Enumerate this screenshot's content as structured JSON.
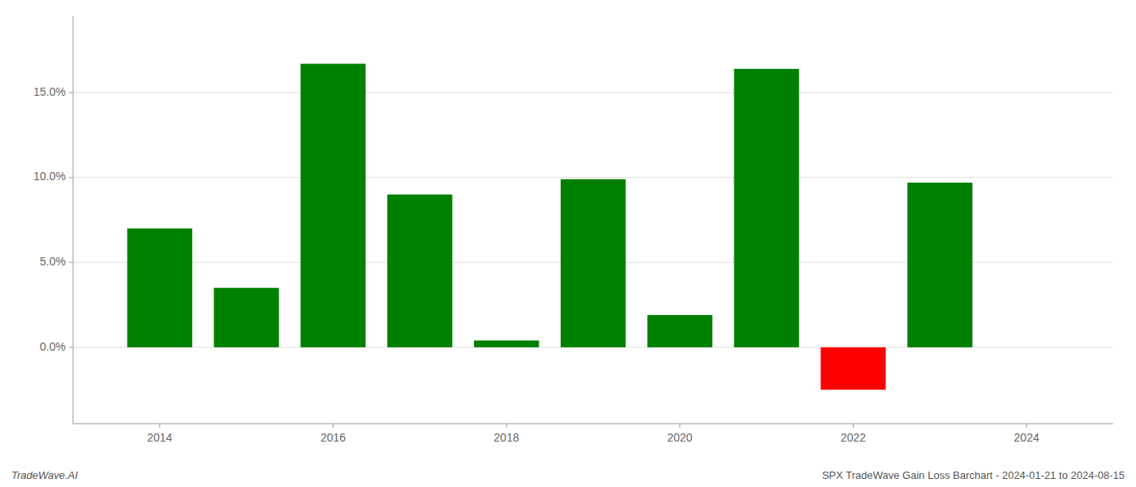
{
  "chart_data": {
    "type": "bar",
    "x": [
      2014,
      2015,
      2016,
      2017,
      2018,
      2019,
      2020,
      2021,
      2022,
      2023
    ],
    "values": [
      0.07,
      0.035,
      0.167,
      0.09,
      0.004,
      0.099,
      0.019,
      0.164,
      -0.025,
      0.097
    ],
    "colors": [
      "#008000",
      "#008000",
      "#008000",
      "#008000",
      "#008000",
      "#008000",
      "#008000",
      "#008000",
      "#ff0000",
      "#008000"
    ],
    "xlim": [
      2013.0,
      2025.0
    ],
    "xticks": [
      2014,
      2016,
      2018,
      2020,
      2022,
      2024
    ],
    "ylim": [
      -0.045,
      0.195
    ],
    "yticks": [
      {
        "value": 0.0,
        "label": "0.0%"
      },
      {
        "value": 0.05,
        "label": "5.0%"
      },
      {
        "value": 0.1,
        "label": "10.0%"
      },
      {
        "value": 0.15,
        "label": "15.0%"
      }
    ],
    "grid": true,
    "annotations": [
      "TradeWave.AI",
      "SPX TradeWave Gain Loss Barchart - 2024-01-21 to 2024-08-15"
    ]
  }
}
